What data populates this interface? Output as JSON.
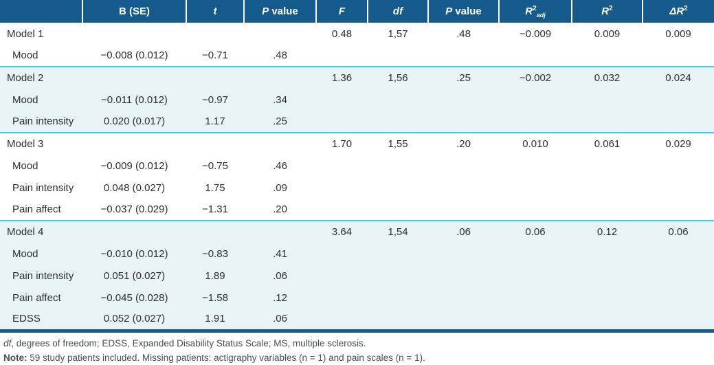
{
  "colors": {
    "header_bg": "#145a8c",
    "shaded_row_bg": "#e7f3f4",
    "group_divider": "#4cc7d4",
    "bottom_border": "#145a8c",
    "body_text": "#2e2e2e",
    "footnote_text": "#4a4e52"
  },
  "table": {
    "headers": [
      {
        "id": "empty",
        "parts": [
          {
            "text": ""
          }
        ]
      },
      {
        "id": "b-se",
        "parts": [
          {
            "text": "B (SE)"
          }
        ]
      },
      {
        "id": "t",
        "parts": [
          {
            "text": "t",
            "italic": true
          }
        ]
      },
      {
        "id": "p-value",
        "parts": [
          {
            "text": "P",
            "italic": true
          },
          {
            "text": " value"
          }
        ]
      },
      {
        "id": "f",
        "parts": [
          {
            "text": "F",
            "italic": true
          }
        ]
      },
      {
        "id": "df",
        "parts": [
          {
            "text": "df",
            "italic": true
          }
        ]
      },
      {
        "id": "p-value-2",
        "parts": [
          {
            "text": "P",
            "italic": true
          },
          {
            "text": " value"
          }
        ]
      },
      {
        "id": "r2-adj",
        "parts": [
          {
            "text": "R",
            "italic": true
          },
          {
            "text": "2",
            "sup": true
          },
          {
            "text": "adj",
            "sub": true,
            "italic": true
          }
        ]
      },
      {
        "id": "r2",
        "parts": [
          {
            "text": "R",
            "italic": true
          },
          {
            "text": "2",
            "sup": true
          }
        ]
      },
      {
        "id": "delta-r2",
        "parts": [
          {
            "text": "ΔR",
            "italic": true
          },
          {
            "text": "2",
            "sup": true
          }
        ]
      }
    ],
    "rows": [
      {
        "label": "Model 1",
        "indent": false,
        "shaded": false,
        "groupStart": false,
        "cells": [
          "",
          "",
          "",
          "0.48",
          "1,57",
          ".48",
          "−0.009",
          "0.009",
          "0.009"
        ]
      },
      {
        "label": "Mood",
        "indent": true,
        "shaded": false,
        "groupStart": false,
        "cells": [
          "−0.008 (0.012)",
          "−0.71",
          ".48",
          "",
          "",
          "",
          "",
          "",
          ""
        ]
      },
      {
        "label": "Model 2",
        "indent": false,
        "shaded": true,
        "groupStart": true,
        "cells": [
          "",
          "",
          "",
          "1.36",
          "1,56",
          ".25",
          "−0.002",
          "0.032",
          "0.024"
        ]
      },
      {
        "label": "Mood",
        "indent": true,
        "shaded": true,
        "groupStart": false,
        "cells": [
          "−0.011 (0.012)",
          "−0.97",
          ".34",
          "",
          "",
          "",
          "",
          "",
          ""
        ]
      },
      {
        "label": "Pain intensity",
        "indent": true,
        "shaded": true,
        "groupStart": false,
        "cells": [
          "0.020 (0.017)",
          "1.17",
          ".25",
          "",
          "",
          "",
          "",
          "",
          ""
        ]
      },
      {
        "label": "Model 3",
        "indent": false,
        "shaded": false,
        "groupStart": true,
        "cells": [
          "",
          "",
          "",
          "1.70",
          "1,55",
          ".20",
          "0.010",
          "0.061",
          "0.029"
        ]
      },
      {
        "label": "Mood",
        "indent": true,
        "shaded": false,
        "groupStart": false,
        "cells": [
          "−0.009 (0.012)",
          "−0.75",
          ".46",
          "",
          "",
          "",
          "",
          "",
          ""
        ]
      },
      {
        "label": "Pain intensity",
        "indent": true,
        "shaded": false,
        "groupStart": false,
        "cells": [
          "0.048 (0.027)",
          "1.75",
          ".09",
          "",
          "",
          "",
          "",
          "",
          ""
        ]
      },
      {
        "label": "Pain affect",
        "indent": true,
        "shaded": false,
        "groupStart": false,
        "cells": [
          "−0.037 (0.029)",
          "−1.31",
          ".20",
          "",
          "",
          "",
          "",
          "",
          ""
        ]
      },
      {
        "label": "Model 4",
        "indent": false,
        "shaded": true,
        "groupStart": true,
        "cells": [
          "",
          "",
          "",
          "3.64",
          "1,54",
          ".06",
          "0.06",
          "0.12",
          "0.06"
        ]
      },
      {
        "label": "Mood",
        "indent": true,
        "shaded": true,
        "groupStart": false,
        "cells": [
          "−0.010 (0.012)",
          "−0.83",
          ".41",
          "",
          "",
          "",
          "",
          "",
          ""
        ]
      },
      {
        "label": "Pain intensity",
        "indent": true,
        "shaded": true,
        "groupStart": false,
        "cells": [
          "0.051 (0.027)",
          "1.89",
          ".06",
          "",
          "",
          "",
          "",
          "",
          ""
        ]
      },
      {
        "label": "Pain affect",
        "indent": true,
        "shaded": true,
        "groupStart": false,
        "cells": [
          "−0.045 (0.028)",
          "−1.58",
          ".12",
          "",
          "",
          "",
          "",
          "",
          ""
        ]
      },
      {
        "label": "EDSS",
        "indent": true,
        "shaded": true,
        "groupStart": false,
        "cells": [
          "0.052 (0.027)",
          "1.91",
          ".06",
          "",
          "",
          "",
          "",
          "",
          ""
        ]
      }
    ]
  },
  "footnotes": {
    "abbreviations": [
      {
        "text": "df",
        "italic": true
      },
      {
        "text": ", degrees of freedom; EDSS, Expanded Disability Status Scale; MS, multiple sclerosis."
      }
    ],
    "note": [
      {
        "text": "Note:",
        "bold": true
      },
      {
        "text": " 59 study patients included. Missing patients: actigraphy variables (n = 1) and pain scales (n = 1)."
      }
    ]
  }
}
